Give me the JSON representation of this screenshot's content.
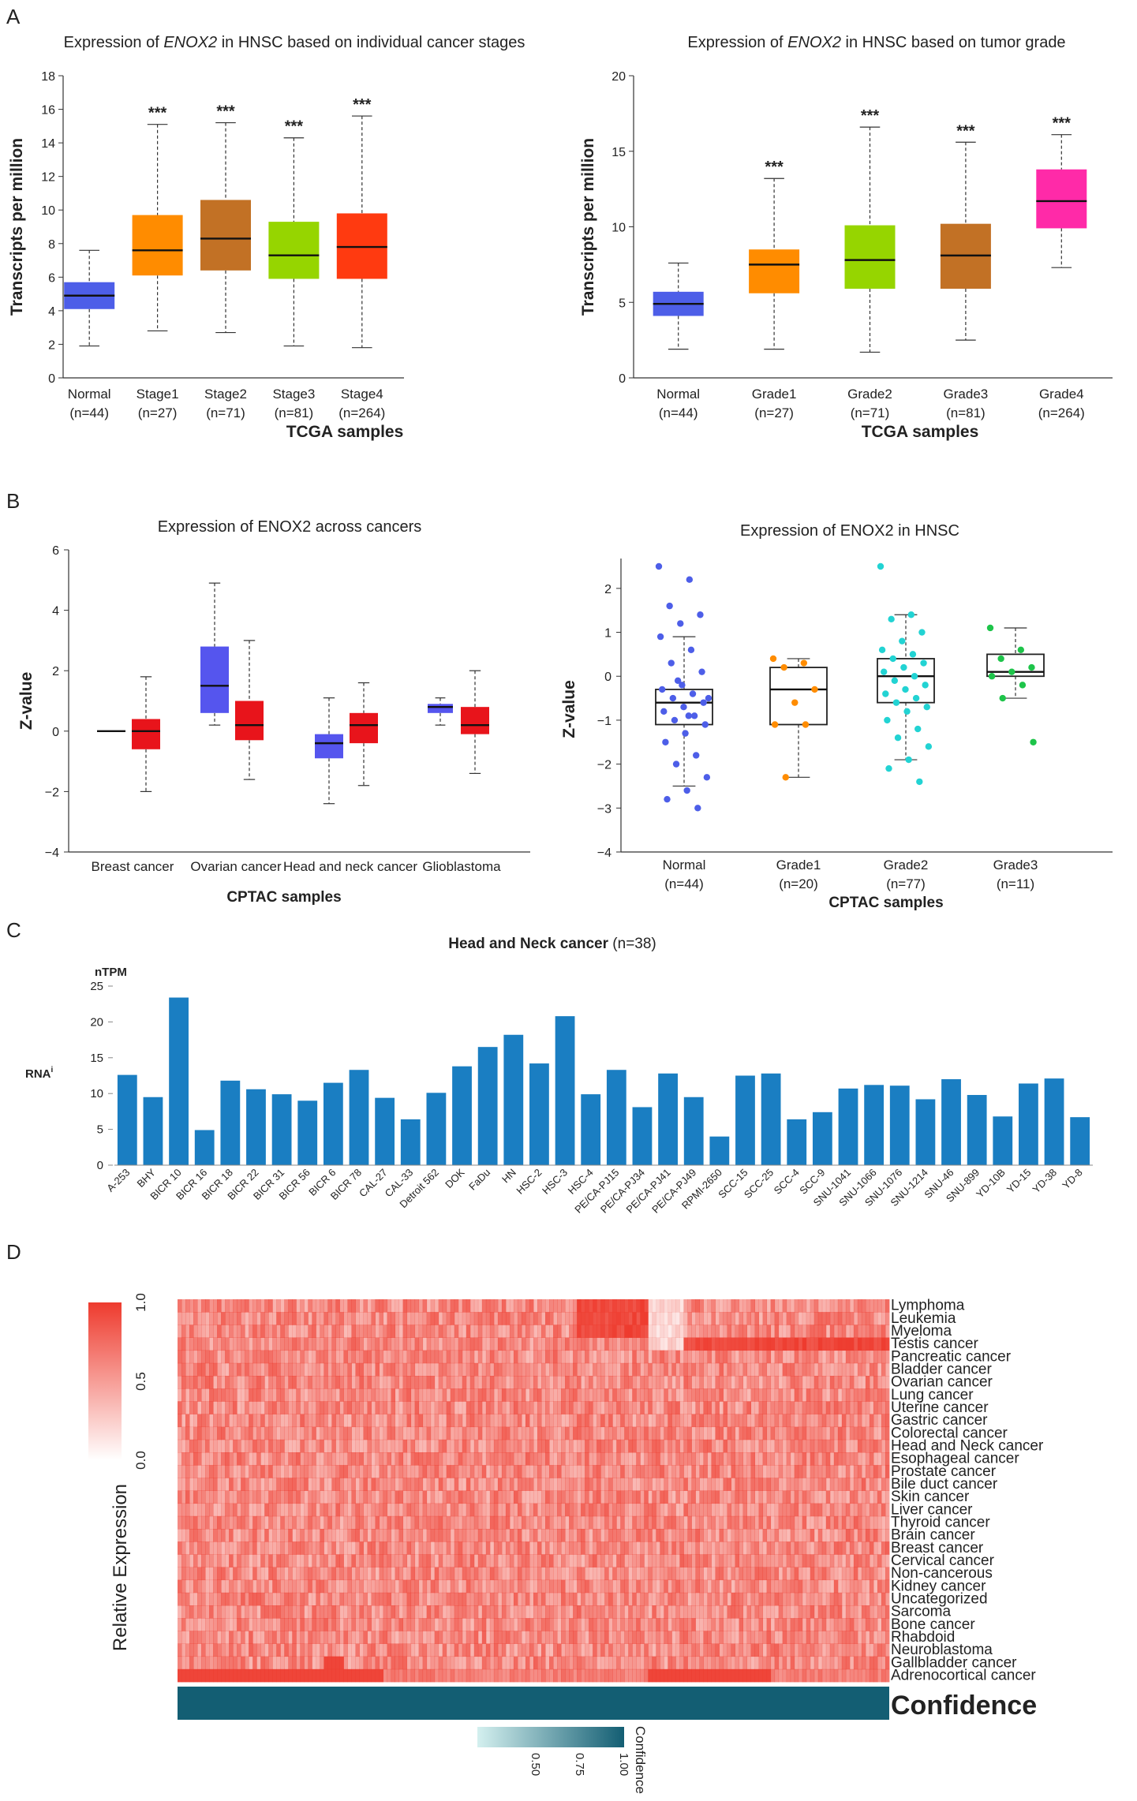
{
  "panel_labels": {
    "a": "A",
    "b": "B",
    "c": "C",
    "d": "D"
  },
  "colors": {
    "normal": "#4d5ee8",
    "orange": "#ff8c00",
    "bronze": "#c27125",
    "lime": "#96d500",
    "red_orange": "#ff3a10",
    "magenta": "#ff2aa8",
    "cptac_red": "#e8141b",
    "cptac_blue": "#5555ee",
    "bar_blue": "#1a7ec2",
    "heat": "#ee3b2e",
    "confidence": "#135e73"
  },
  "chart_data": [
    {
      "id": "A1",
      "type": "box",
      "title": {
        "pre": "Expression of ",
        "gene": "ENOX2",
        "post": " in HNSC based on individual cancer stages"
      },
      "xlabel": "TCGA samples",
      "ylabel": "Transcripts per million",
      "ylim": [
        0,
        18
      ],
      "yticks": [
        "0",
        "2",
        "4",
        "6",
        "8",
        "10",
        "12",
        "14",
        "16",
        "18"
      ],
      "groups": [
        {
          "label": "Normal",
          "n": "(n=44)",
          "min": 1.9,
          "q1": 4.1,
          "median": 4.9,
          "q3": 5.7,
          "max": 7.6,
          "sig": "",
          "color": "#4d5ee8"
        },
        {
          "label": "Stage1",
          "n": "(n=27)",
          "min": 2.8,
          "q1": 6.1,
          "median": 7.6,
          "q3": 9.7,
          "max": 15.1,
          "sig": "***",
          "color": "#ff8c00"
        },
        {
          "label": "Stage2",
          "n": "(n=71)",
          "min": 2.7,
          "q1": 6.4,
          "median": 8.3,
          "q3": 10.6,
          "max": 15.2,
          "sig": "***",
          "color": "#c27125"
        },
        {
          "label": "Stage3",
          "n": "(n=81)",
          "min": 1.9,
          "q1": 5.9,
          "median": 7.3,
          "q3": 9.3,
          "max": 14.3,
          "sig": "***",
          "color": "#96d500"
        },
        {
          "label": "Stage4",
          "n": "(n=264)",
          "min": 1.8,
          "q1": 5.9,
          "median": 7.8,
          "q3": 9.8,
          "max": 15.6,
          "sig": "***",
          "color": "#ff3a10"
        }
      ]
    },
    {
      "id": "A2",
      "type": "box",
      "title": {
        "pre": "Expression of ",
        "gene": "ENOX2",
        "post": " in HNSC based on tumor grade"
      },
      "xlabel": "TCGA samples",
      "ylabel": "Transcripts per million",
      "ylim": [
        0,
        20
      ],
      "yticks": [
        "0",
        "5",
        "10",
        "15",
        "20"
      ],
      "groups": [
        {
          "label": "Normal",
          "n": "(n=44)",
          "min": 1.9,
          "q1": 4.1,
          "median": 4.9,
          "q3": 5.7,
          "max": 7.6,
          "sig": "",
          "color": "#4d5ee8"
        },
        {
          "label": "Grade1",
          "n": "(n=27)",
          "min": 1.9,
          "q1": 5.6,
          "median": 7.5,
          "q3": 8.5,
          "max": 13.2,
          "sig": "***",
          "color": "#ff8c00"
        },
        {
          "label": "Grade2",
          "n": "(n=71)",
          "min": 1.7,
          "q1": 5.9,
          "median": 7.8,
          "q3": 10.1,
          "max": 16.6,
          "sig": "***",
          "color": "#96d500"
        },
        {
          "label": "Grade3",
          "n": "(n=81)",
          "min": 2.5,
          "q1": 5.9,
          "median": 8.1,
          "q3": 10.2,
          "max": 15.6,
          "sig": "***",
          "color": "#c27125"
        },
        {
          "label": "Grade4",
          "n": "(n=264)",
          "min": 7.3,
          "q1": 9.9,
          "median": 11.7,
          "q3": 13.8,
          "max": 16.1,
          "sig": "***",
          "color": "#ff2aa8"
        }
      ]
    },
    {
      "id": "B1",
      "type": "box",
      "title": "Expression of ENOX2 across cancers",
      "xlabel": "CPTAC samples",
      "ylabel": "Z-value",
      "ylim": [
        -4,
        6
      ],
      "yticks": [
        "−4",
        "−2",
        "0",
        "2",
        "4",
        "6"
      ],
      "categories": [
        "Breast cancer",
        "Ovarian cancer",
        "Head and neck cancer",
        "Glioblastoma"
      ],
      "series": [
        {
          "name": "Normal",
          "color": "#5555ee",
          "boxes": [
            {
              "min": 0.0,
              "q1": 0.0,
              "median": 0.0,
              "q3": 0.0,
              "max": 0.0
            },
            {
              "min": 0.2,
              "q1": 0.6,
              "median": 1.5,
              "q3": 2.8,
              "max": 4.9
            },
            {
              "min": -2.4,
              "q1": -0.9,
              "median": -0.4,
              "q3": -0.1,
              "max": 1.1
            },
            {
              "min": 0.2,
              "q1": 0.6,
              "median": 0.8,
              "q3": 0.9,
              "max": 1.1
            }
          ]
        },
        {
          "name": "Tumor",
          "color": "#e8141b",
          "boxes": [
            {
              "min": -2.0,
              "q1": -0.6,
              "median": -0.0,
              "q3": 0.4,
              "max": 1.8
            },
            {
              "min": -1.6,
              "q1": -0.3,
              "median": 0.2,
              "q3": 1.0,
              "max": 3.0
            },
            {
              "min": -1.8,
              "q1": -0.4,
              "median": 0.2,
              "q3": 0.6,
              "max": 1.6
            },
            {
              "min": -1.4,
              "q1": -0.1,
              "median": 0.2,
              "q3": 0.8,
              "max": 2.0
            }
          ]
        }
      ]
    },
    {
      "id": "B2",
      "type": "box-scatter",
      "title": "Expression of ENOX2 in HNSC",
      "xlabel": "CPTAC samples",
      "ylabel": "Z-value",
      "ylim": [
        -4,
        2.5
      ],
      "yticks": [
        "−4",
        "−3",
        "−2",
        "−1",
        "0",
        "1",
        "2"
      ],
      "groups": [
        {
          "label": "Normal",
          "n": "(n=44)",
          "color": "#4d5ee8",
          "min": -2.5,
          "q1": -1.1,
          "median": -0.6,
          "q3": -0.3,
          "max": 0.9,
          "points": [
            2.5,
            2.2,
            1.6,
            1.4,
            1.2,
            0.9,
            0.6,
            0.3,
            0.1,
            -0.2,
            -0.3,
            -0.4,
            -0.5,
            -0.6,
            -0.7,
            -0.8,
            -0.9,
            -1.0,
            -1.1,
            -1.3,
            -1.5,
            -1.8,
            -2.0,
            -2.3,
            -2.6,
            -2.8,
            -3.0,
            -0.1,
            -0.5,
            -0.9
          ]
        },
        {
          "label": "Grade1",
          "n": "(n=20)",
          "color": "#ff8c00",
          "min": -2.3,
          "q1": -1.1,
          "median": -0.3,
          "q3": 0.2,
          "max": 0.4,
          "points": [
            0.4,
            0.3,
            0.2,
            -0.3,
            -0.6,
            -1.1,
            -1.1,
            -2.3
          ]
        },
        {
          "label": "Grade2",
          "n": "(n=77)",
          "color": "#22d3d3",
          "min": -1.9,
          "q1": -0.6,
          "median": 0.0,
          "q3": 0.4,
          "max": 1.4,
          "points": [
            2.5,
            1.4,
            1.3,
            1.0,
            0.8,
            0.6,
            0.5,
            0.4,
            0.3,
            0.2,
            0.1,
            0.0,
            -0.1,
            -0.2,
            -0.3,
            -0.4,
            -0.5,
            -0.6,
            -0.7,
            -0.8,
            -1.0,
            -1.2,
            -1.4,
            -1.6,
            -1.9,
            -2.1,
            -2.4
          ]
        },
        {
          "label": "Grade3",
          "n": "(n=11)",
          "color": "#1ec44a",
          "min": -0.5,
          "q1": 0.0,
          "median": 0.1,
          "q3": 0.5,
          "max": 1.1,
          "points": [
            1.1,
            0.6,
            0.4,
            0.2,
            0.1,
            0.0,
            -0.2,
            -0.5,
            -1.5
          ]
        }
      ]
    },
    {
      "id": "C",
      "type": "bar",
      "title": {
        "bold": "Head and Neck cancer",
        "rest": " (n=38)"
      },
      "unit": "nTPM",
      "ylabel": "RNA",
      "ylabel_sup": "i",
      "ylim": [
        0,
        25
      ],
      "yticks": [
        "0",
        "5",
        "10",
        "15",
        "20",
        "25"
      ],
      "categories": [
        "A-253",
        "BHY",
        "BICR 10",
        "BICR 16",
        "BICR 18",
        "BICR 22",
        "BICR 31",
        "BICR 56",
        "BICR 6",
        "BICR 78",
        "CAL-27",
        "CAL-33",
        "Detroit 562",
        "DOK",
        "FaDu",
        "HN",
        "HSC-2",
        "HSC-3",
        "HSC-4",
        "PE/CA-PJ15",
        "PE/CA-PJ34",
        "PE/CA-PJ41",
        "PE/CA-PJ49",
        "RPMI-2650",
        "SCC-15",
        "SCC-25",
        "SCC-4",
        "SCC-9",
        "SNU-1041",
        "SNU-1066",
        "SNU-1076",
        "SNU-1214",
        "SNU-46",
        "SNU-899",
        "YD-10B",
        "YD-15",
        "YD-38",
        "YD-8"
      ],
      "values": [
        12.6,
        9.5,
        23.4,
        4.9,
        11.8,
        10.6,
        9.9,
        9.0,
        11.5,
        13.3,
        9.4,
        6.4,
        10.1,
        13.8,
        16.5,
        18.2,
        14.2,
        20.8,
        9.9,
        13.3,
        8.1,
        12.8,
        9.5,
        4.0,
        12.5,
        12.8,
        6.4,
        7.4,
        10.7,
        11.2,
        11.1,
        9.2,
        12.0,
        9.8,
        6.8,
        11.4,
        12.1,
        6.7
      ]
    },
    {
      "id": "D",
      "type": "heatmap",
      "rows": [
        "Lymphoma",
        "Leukemia",
        "Myeloma",
        "Testis cancer",
        "Pancreatic cancer",
        "Bladder cancer",
        "Ovarian cancer",
        "Lung cancer",
        "Uterine cancer",
        "Gastric cancer",
        "Colorectal cancer",
        "Head and Neck cancer",
        "Esophageal cancer",
        "Prostate cancer",
        "Bile duct cancer",
        "Skin cancer",
        "Liver cancer",
        "Thyroid cancer",
        "Brain cancer",
        "Breast cancer",
        "Cervical cancer",
        "Non-cancerous",
        "Kidney cancer",
        "Uncategorized",
        "Sarcoma",
        "Bone cancer",
        "Rhabdoid",
        "Neuroblastoma",
        "Gallbladder cancer",
        "Adrenocortical cancer"
      ],
      "column_count": 180,
      "color_range": [
        0.0,
        1.0
      ],
      "legend_title": "Relative Expression",
      "legend_ticks": [
        "1.0",
        "0.5",
        "0.0"
      ],
      "confidence_label": "Confidence",
      "confidence_legend_title": "Confidence",
      "confidence_ticks": [
        "0.50",
        "0.75",
        "1.00"
      ]
    }
  ]
}
